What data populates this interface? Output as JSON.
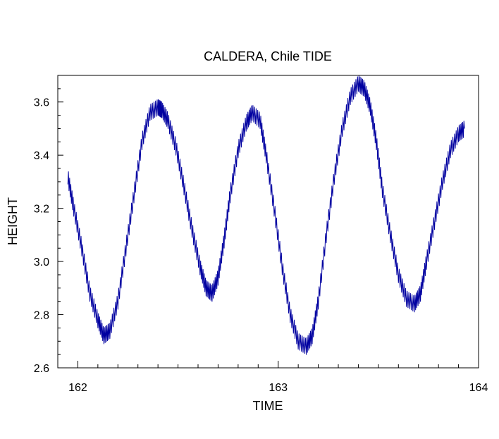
{
  "chart_data": {
    "type": "line",
    "title": "CALDERA, Chile TIDE",
    "xlabel": "TIME",
    "ylabel": "HEIGHT",
    "xlim": [
      161.9,
      164.0
    ],
    "ylim": [
      2.6,
      3.7
    ],
    "xticks": [
      162,
      163,
      164
    ],
    "xtick_labels": [
      "162",
      "163",
      "164"
    ],
    "yticks": [
      2.6,
      2.8,
      3.0,
      3.2,
      3.4,
      3.6
    ],
    "ytick_labels": [
      "2.6",
      "2.8",
      "3.0",
      "3.2",
      "3.4",
      "3.6"
    ],
    "grid": false,
    "colors": {
      "series": "#0000a0",
      "axes": "#000000",
      "background": "#ffffff"
    },
    "series": [
      {
        "x": [
          161.95,
          161.98,
          162.02,
          162.06,
          162.1,
          162.13,
          162.16,
          162.2,
          162.24,
          162.28,
          162.32,
          162.36,
          162.4,
          162.42,
          162.45,
          162.49,
          162.53,
          162.57,
          162.61,
          162.64,
          162.67,
          162.7,
          162.73,
          162.76,
          162.8,
          162.84,
          162.87,
          162.91,
          162.94,
          162.98,
          163.02,
          163.06,
          163.1,
          163.14,
          163.17,
          163.2,
          163.24,
          163.28,
          163.32,
          163.36,
          163.4,
          163.43,
          163.46,
          163.49,
          163.52,
          163.56,
          163.6,
          163.64,
          163.68,
          163.71,
          163.74,
          163.78,
          163.82,
          163.86,
          163.9,
          163.93
        ],
        "y": [
          3.32,
          3.2,
          3.05,
          2.88,
          2.78,
          2.72,
          2.74,
          2.85,
          3.05,
          3.25,
          3.45,
          3.56,
          3.58,
          3.57,
          3.53,
          3.43,
          3.28,
          3.12,
          2.98,
          2.9,
          2.88,
          2.94,
          3.08,
          3.25,
          3.42,
          3.52,
          3.56,
          3.53,
          3.4,
          3.2,
          2.98,
          2.8,
          2.7,
          2.68,
          2.72,
          2.85,
          3.1,
          3.32,
          3.5,
          3.62,
          3.67,
          3.65,
          3.58,
          3.45,
          3.27,
          3.1,
          2.95,
          2.86,
          2.84,
          2.88,
          3.0,
          3.15,
          3.3,
          3.42,
          3.48,
          3.5
        ],
        "noise_amplitude": 0.03
      }
    ]
  }
}
